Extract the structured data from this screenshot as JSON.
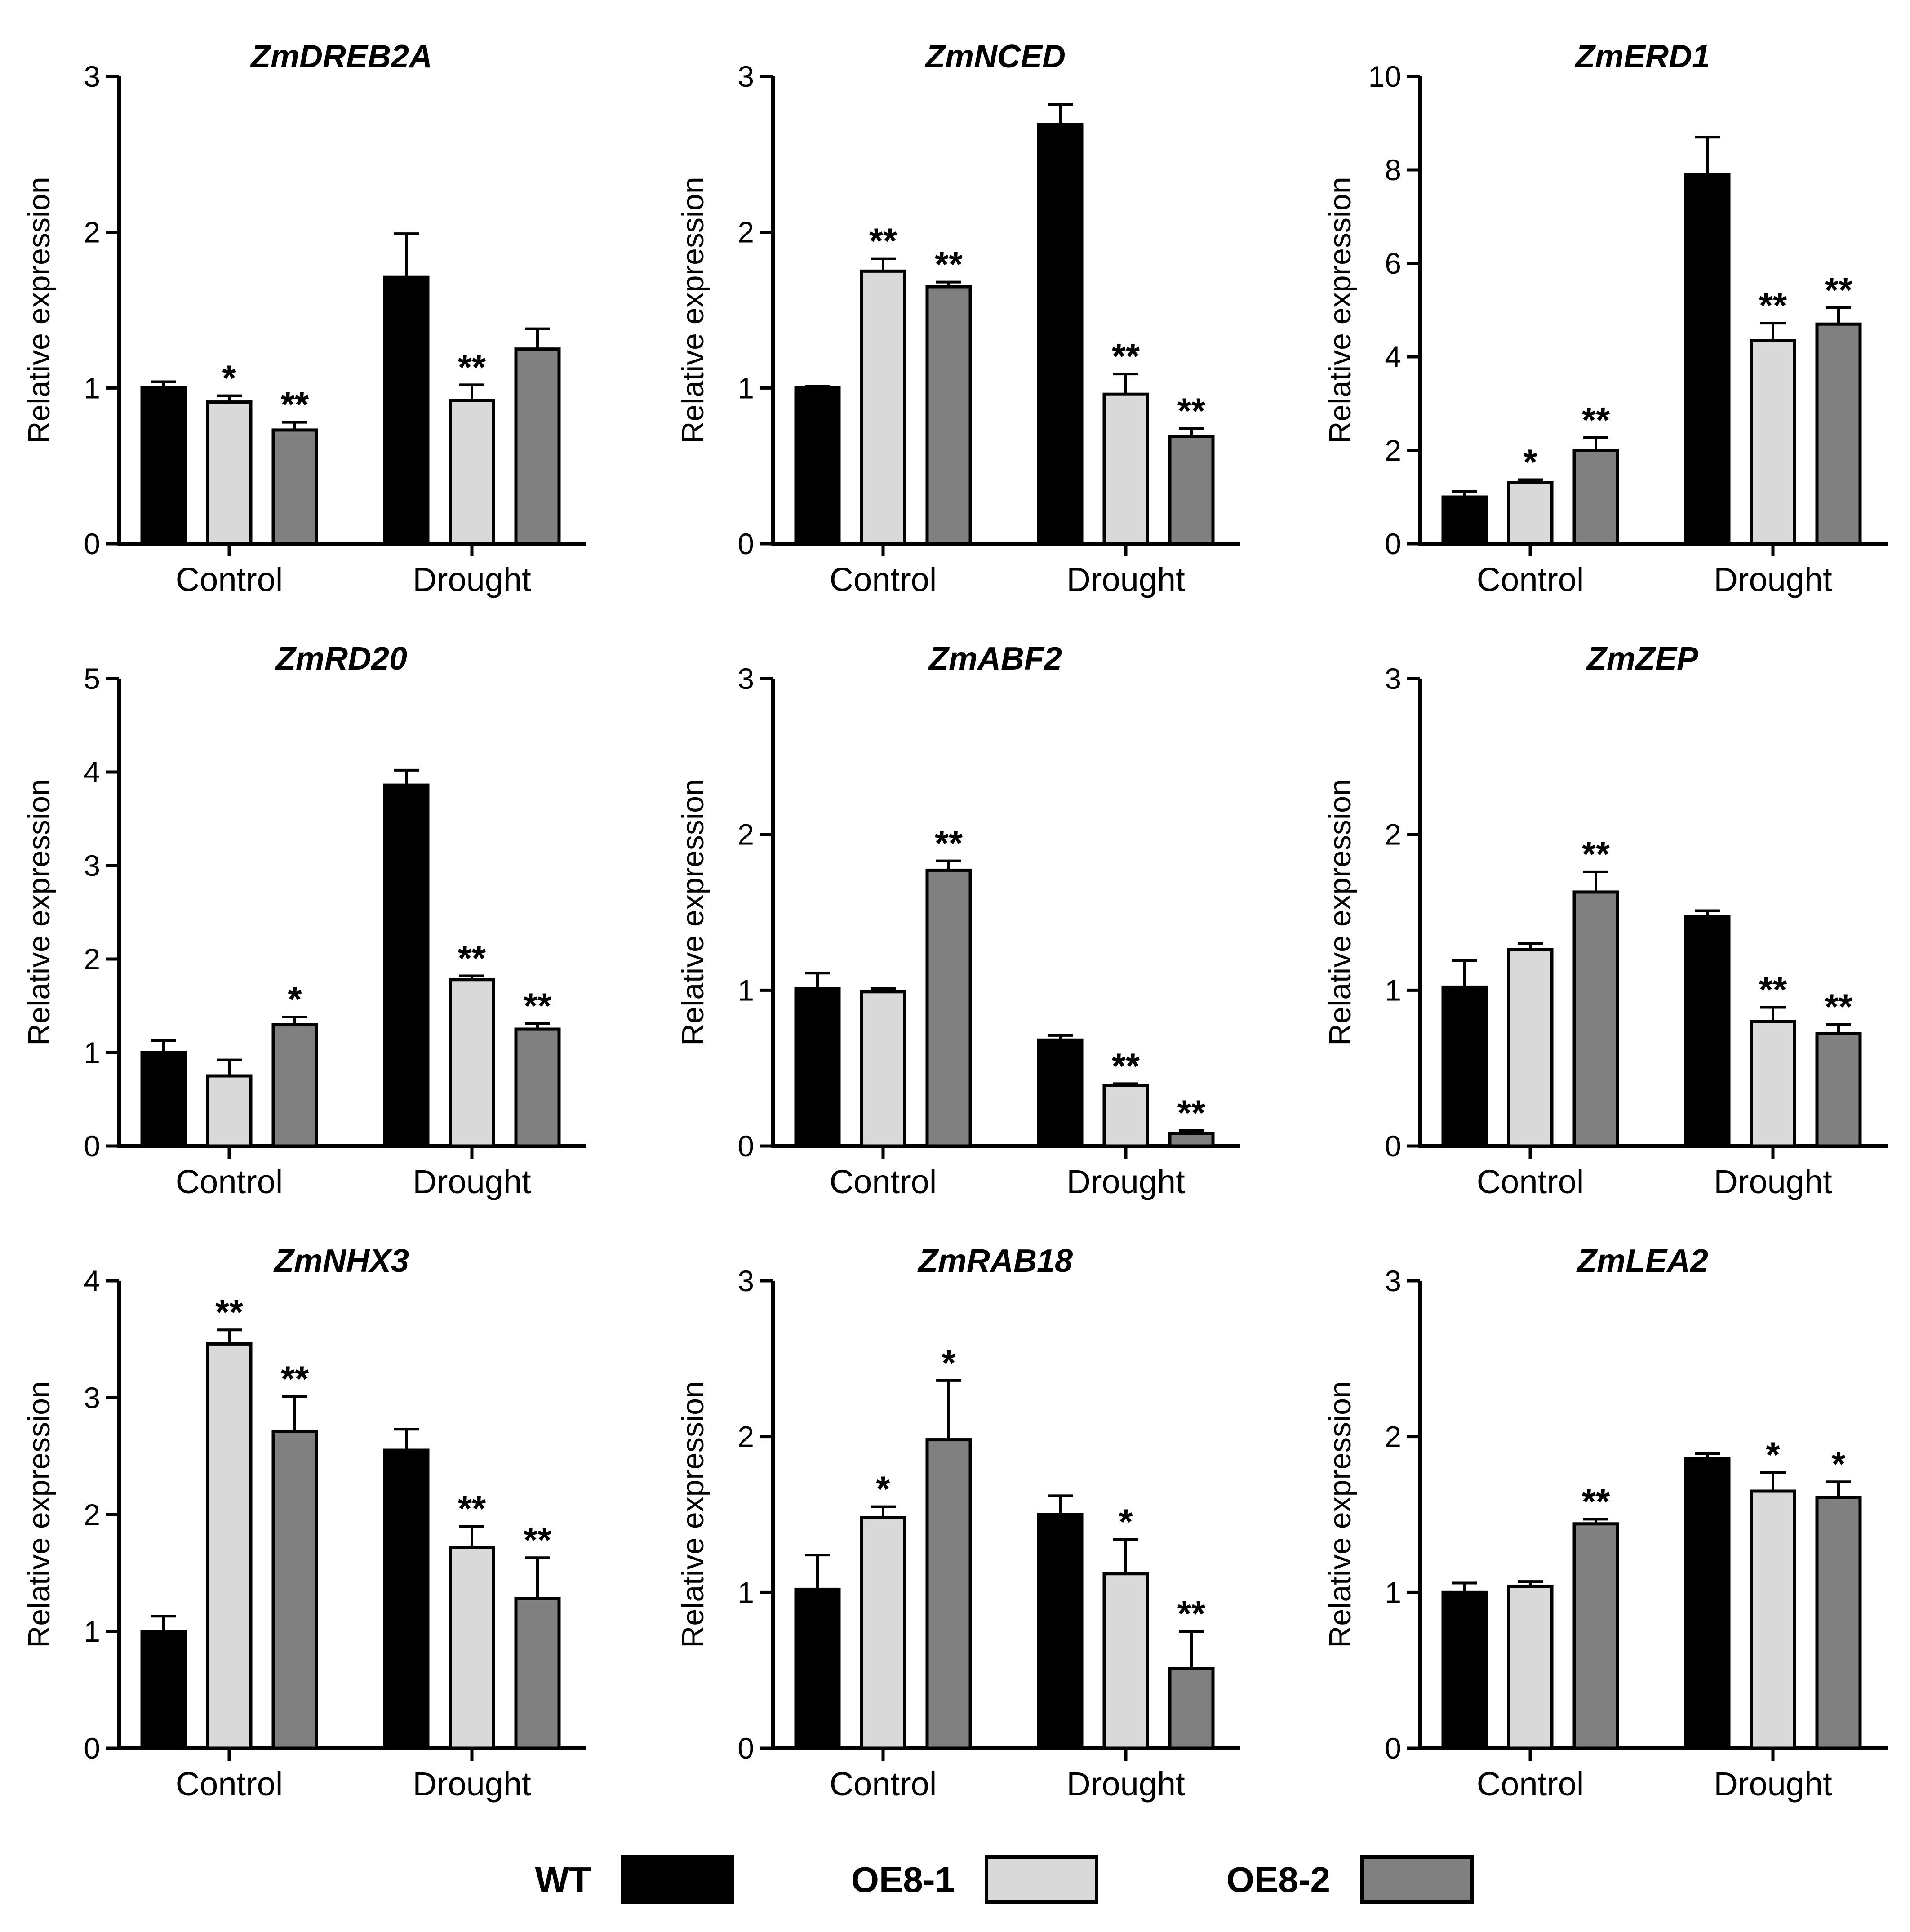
{
  "chart_data": [
    {
      "type": "bar",
      "title": "ZmDREB2A",
      "ylabel": "Relative expression",
      "ylim": [
        0,
        3
      ],
      "yticks": [
        0,
        1,
        2,
        3
      ],
      "categories": [
        "Control",
        "Drought"
      ],
      "series": [
        {
          "name": "WT",
          "values": [
            1.0,
            1.71
          ],
          "errors": [
            0.04,
            0.28
          ],
          "sig": [
            "",
            ""
          ]
        },
        {
          "name": "OE8-1",
          "values": [
            0.91,
            0.92
          ],
          "errors": [
            0.04,
            0.1
          ],
          "sig": [
            "*",
            "**"
          ]
        },
        {
          "name": "OE8-2",
          "values": [
            0.73,
            1.25
          ],
          "errors": [
            0.05,
            0.13
          ],
          "sig": [
            "**",
            ""
          ]
        }
      ]
    },
    {
      "type": "bar",
      "title": "ZmNCED",
      "ylabel": "Relative expression",
      "ylim": [
        0,
        3
      ],
      "yticks": [
        0,
        1,
        2,
        3
      ],
      "categories": [
        "Control",
        "Drought"
      ],
      "series": [
        {
          "name": "WT",
          "values": [
            1.0,
            2.69
          ],
          "errors": [
            0.01,
            0.13
          ],
          "sig": [
            "",
            ""
          ]
        },
        {
          "name": "OE8-1",
          "values": [
            1.75,
            0.96
          ],
          "errors": [
            0.08,
            0.13
          ],
          "sig": [
            "**",
            "**"
          ]
        },
        {
          "name": "OE8-2",
          "values": [
            1.65,
            0.69
          ],
          "errors": [
            0.03,
            0.05
          ],
          "sig": [
            "**",
            "**"
          ]
        }
      ]
    },
    {
      "type": "bar",
      "title": "ZmERD1",
      "ylabel": "Relative expression",
      "ylim": [
        0,
        10
      ],
      "yticks": [
        0,
        2,
        4,
        6,
        8,
        10
      ],
      "categories": [
        "Control",
        "Drought"
      ],
      "series": [
        {
          "name": "WT",
          "values": [
            1.0,
            7.9
          ],
          "errors": [
            0.12,
            0.8
          ],
          "sig": [
            "",
            ""
          ]
        },
        {
          "name": "OE8-1",
          "values": [
            1.31,
            4.35
          ],
          "errors": [
            0.06,
            0.37
          ],
          "sig": [
            "*",
            "**"
          ]
        },
        {
          "name": "OE8-2",
          "values": [
            2.0,
            4.7
          ],
          "errors": [
            0.27,
            0.35
          ],
          "sig": [
            "**",
            "**"
          ]
        }
      ]
    },
    {
      "type": "bar",
      "title": "ZmRD20",
      "ylabel": "Relative expression",
      "ylim": [
        0,
        5
      ],
      "yticks": [
        0,
        1,
        2,
        3,
        4,
        5
      ],
      "categories": [
        "Control",
        "Drought"
      ],
      "series": [
        {
          "name": "WT",
          "values": [
            1.0,
            3.86
          ],
          "errors": [
            0.13,
            0.16
          ],
          "sig": [
            "",
            ""
          ]
        },
        {
          "name": "OE8-1",
          "values": [
            0.75,
            1.78
          ],
          "errors": [
            0.17,
            0.04
          ],
          "sig": [
            "",
            "**"
          ]
        },
        {
          "name": "OE8-2",
          "values": [
            1.3,
            1.25
          ],
          "errors": [
            0.08,
            0.06
          ],
          "sig": [
            "*",
            "**"
          ]
        }
      ]
    },
    {
      "type": "bar",
      "title": "ZmABF2",
      "ylabel": "Relative expression",
      "ylim": [
        0,
        3
      ],
      "yticks": [
        0,
        1,
        2,
        3
      ],
      "categories": [
        "Control",
        "Drought"
      ],
      "series": [
        {
          "name": "WT",
          "values": [
            1.01,
            0.68
          ],
          "errors": [
            0.1,
            0.03
          ],
          "sig": [
            "",
            ""
          ]
        },
        {
          "name": "OE8-1",
          "values": [
            0.99,
            0.39
          ],
          "errors": [
            0.02,
            0.01
          ],
          "sig": [
            "",
            "**"
          ]
        },
        {
          "name": "OE8-2",
          "values": [
            1.77,
            0.08
          ],
          "errors": [
            0.06,
            0.02
          ],
          "sig": [
            "**",
            "**"
          ]
        }
      ]
    },
    {
      "type": "bar",
      "title": "ZmZEP",
      "ylabel": "Relative expression",
      "ylim": [
        0,
        3
      ],
      "yticks": [
        0,
        1,
        2,
        3
      ],
      "categories": [
        "Control",
        "Drought"
      ],
      "series": [
        {
          "name": "WT",
          "values": [
            1.02,
            1.47
          ],
          "errors": [
            0.17,
            0.04
          ],
          "sig": [
            "",
            ""
          ]
        },
        {
          "name": "OE8-1",
          "values": [
            1.26,
            0.8
          ],
          "errors": [
            0.04,
            0.09
          ],
          "sig": [
            "",
            "**"
          ]
        },
        {
          "name": "OE8-2",
          "values": [
            1.63,
            0.72
          ],
          "errors": [
            0.13,
            0.06
          ],
          "sig": [
            "**",
            "**"
          ]
        }
      ]
    },
    {
      "type": "bar",
      "title": "ZmNHX3",
      "ylabel": "Relative expression",
      "ylim": [
        0,
        4
      ],
      "yticks": [
        0,
        1,
        2,
        3,
        4
      ],
      "categories": [
        "Control",
        "Drought"
      ],
      "series": [
        {
          "name": "WT",
          "values": [
            1.0,
            2.55
          ],
          "errors": [
            0.13,
            0.18
          ],
          "sig": [
            "",
            ""
          ]
        },
        {
          "name": "OE8-1",
          "values": [
            3.46,
            1.72
          ],
          "errors": [
            0.12,
            0.18
          ],
          "sig": [
            "**",
            "**"
          ]
        },
        {
          "name": "OE8-2",
          "values": [
            2.71,
            1.28
          ],
          "errors": [
            0.3,
            0.35
          ],
          "sig": [
            "**",
            "**"
          ]
        }
      ]
    },
    {
      "type": "bar",
      "title": "ZmRAB18",
      "ylabel": "Relative expression",
      "ylim": [
        0,
        3
      ],
      "yticks": [
        0,
        1,
        2,
        3
      ],
      "categories": [
        "Control",
        "Drought"
      ],
      "series": [
        {
          "name": "WT",
          "values": [
            1.02,
            1.5
          ],
          "errors": [
            0.22,
            0.12
          ],
          "sig": [
            "",
            ""
          ]
        },
        {
          "name": "OE8-1",
          "values": [
            1.48,
            1.12
          ],
          "errors": [
            0.07,
            0.22
          ],
          "sig": [
            "*",
            "*"
          ]
        },
        {
          "name": "OE8-2",
          "values": [
            1.98,
            0.51
          ],
          "errors": [
            0.38,
            0.24
          ],
          "sig": [
            "*",
            "**"
          ]
        }
      ]
    },
    {
      "type": "bar",
      "title": "ZmLEA2",
      "ylabel": "Relative expression",
      "ylim": [
        0,
        3
      ],
      "yticks": [
        0,
        1,
        2,
        3
      ],
      "categories": [
        "Control",
        "Drought"
      ],
      "series": [
        {
          "name": "WT",
          "values": [
            1.0,
            1.86
          ],
          "errors": [
            0.06,
            0.03
          ],
          "sig": [
            "",
            ""
          ]
        },
        {
          "name": "OE8-1",
          "values": [
            1.04,
            1.65
          ],
          "errors": [
            0.03,
            0.12
          ],
          "sig": [
            "",
            "*"
          ]
        },
        {
          "name": "OE8-2",
          "values": [
            1.44,
            1.61
          ],
          "errors": [
            0.03,
            0.1
          ],
          "sig": [
            "**",
            "*"
          ]
        }
      ]
    }
  ],
  "legend": {
    "placement": "bottom-center",
    "items": [
      {
        "label": "WT",
        "color": "#000000"
      },
      {
        "label": "OE8-1",
        "color": "#d9d9d9"
      },
      {
        "label": "OE8-2",
        "color": "#808080"
      }
    ]
  }
}
